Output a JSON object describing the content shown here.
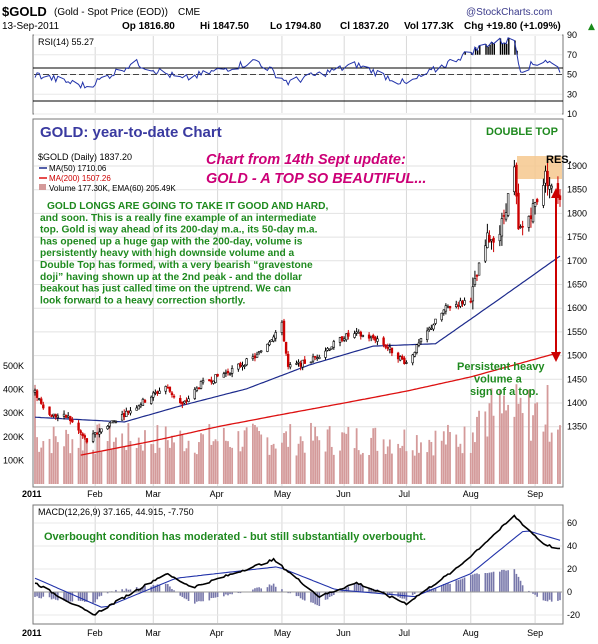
{
  "header": {
    "symbol": "$GOLD",
    "name": "(Gold - Spot Price (EOD))",
    "exchange": "CME",
    "date": "13-Sep-2011",
    "open": "Op 1816.80",
    "high": "Hi 1847.50",
    "low": "Lo 1794.80",
    "close": "Cl 1837.20",
    "volume": "Vol 177.3K",
    "change": "Chg +19.80 (+1.09%)",
    "watermark": "@StockCharts.com",
    "arrow": "▲"
  },
  "rsi": {
    "label": "RSI(14) 55.27",
    "ticks": [
      "90",
      "70",
      "50",
      "30",
      "10"
    ]
  },
  "main": {
    "legend_price": "$GOLD (Daily) 1837.20",
    "legend_ma50": "MA(50) 1710.06",
    "legend_ma200": "MA(200) 1507.26",
    "legend_volume": "Volume 177.30K, EMA(60) 205.49K",
    "price_ticks": [
      "1900",
      "1850",
      "1800",
      "1750",
      "1700",
      "1650",
      "1600",
      "1550",
      "1500",
      "1450",
      "1400",
      "1350"
    ],
    "volume_ticks": [
      "500K",
      "400K",
      "300K",
      "200K",
      "100K"
    ],
    "month_labels": [
      "2011",
      "Feb",
      "Mar",
      "Apr",
      "May",
      "Jun",
      "Jul",
      "Aug",
      "Sep"
    ]
  },
  "macd": {
    "label": "MACD(12,26,9) 37.165, 44.915, -7.750",
    "ticks": [
      "60",
      "40",
      "20",
      "0",
      "-20"
    ],
    "month_labels": [
      "2011",
      "Feb",
      "Mar",
      "Apr",
      "May",
      "Jun",
      "Jul",
      "Aug",
      "Sep"
    ]
  },
  "annotations": {
    "ytd_title": "GOLD: year-to-date Chart",
    "double_top": "DOUBLE TOP",
    "res": "RES.",
    "update_line1": "Chart from 14th Sept update:",
    "update_line2": "GOLD - A TOP SO BEAUTIFUL...",
    "commentary": [
      "GOLD LONGS ARE GOING TO TAKE IT GOOD AND HARD,",
      "and soon. This is a really fine example of an intermediate",
      "top. Gold is way ahead of its 200-day m.a., its 50-day m.a.",
      "has opened up a huge gap with the 200-day, volume is",
      "persistently heavy with high downside volume and a",
      "Double Top has formed, with a very bearish “gravestone",
      "doji” having shown up at the 2nd peak - and the dollar",
      "beakout has just called time on the uptrend. We can",
      "look forward to a heavy correction shortly."
    ],
    "volume_note": [
      "Persistent heavy",
      "volume a",
      "sign of a top."
    ],
    "macd_note": "Overbought condition has moderated - but still substantially overbought."
  },
  "colors": {
    "price_up": "#000000",
    "price_down": "#cc0000",
    "ma50": "#1c2a8c",
    "ma200": "#dd1111",
    "volume": "#d49a9a",
    "rsi_line": "#2233aa",
    "rsi_fill": "#000000",
    "macd_line": "#000000",
    "signal_line": "#2233aa",
    "histogram": "#7777aa",
    "annotation_blue": "#3a3aa0",
    "annotation_green": "#1f8a1f",
    "annotation_magenta": "#cc0077",
    "resistance_band": "#f6c88e",
    "arrow_red": "#cc0000"
  },
  "chart_data": {
    "type": "candlestick",
    "title": "$GOLD (Daily)",
    "period": "2011-01-03 to 2011-09-13",
    "price_axis": {
      "ylim": [
        1300,
        1920
      ],
      "side": "right"
    },
    "price_path_approx": [
      {
        "x": "2011-01-03",
        "y": 1422
      },
      {
        "x": "2011-01-10",
        "y": 1375
      },
      {
        "x": "2011-01-19",
        "y": 1370
      },
      {
        "x": "2011-01-28",
        "y": 1319
      },
      {
        "x": "2011-02-07",
        "y": 1355
      },
      {
        "x": "2011-02-18",
        "y": 1385
      },
      {
        "x": "2011-03-07",
        "y": 1435
      },
      {
        "x": "2011-03-15",
        "y": 1395
      },
      {
        "x": "2011-03-24",
        "y": 1440
      },
      {
        "x": "2011-04-08",
        "y": 1470
      },
      {
        "x": "2011-04-20",
        "y": 1500
      },
      {
        "x": "2011-05-02",
        "y": 1565
      },
      {
        "x": "2011-05-05",
        "y": 1475
      },
      {
        "x": "2011-05-16",
        "y": 1490
      },
      {
        "x": "2011-06-01",
        "y": 1540
      },
      {
        "x": "2011-06-07",
        "y": 1545
      },
      {
        "x": "2011-06-17",
        "y": 1535
      },
      {
        "x": "2011-06-28",
        "y": 1495
      },
      {
        "x": "2011-07-01",
        "y": 1485
      },
      {
        "x": "2011-07-11",
        "y": 1550
      },
      {
        "x": "2011-07-20",
        "y": 1600
      },
      {
        "x": "2011-08-01",
        "y": 1620
      },
      {
        "x": "2011-08-09",
        "y": 1745
      },
      {
        "x": "2011-08-15",
        "y": 1760
      },
      {
        "x": "2011-08-22",
        "y": 1890
      },
      {
        "x": "2011-08-24",
        "y": 1760
      },
      {
        "x": "2011-08-26",
        "y": 1770
      },
      {
        "x": "2011-09-01",
        "y": 1820
      },
      {
        "x": "2011-09-06",
        "y": 1880
      },
      {
        "x": "2011-09-09",
        "y": 1850
      },
      {
        "x": "2011-09-13",
        "y": 1837
      }
    ],
    "ma50_approx": [
      {
        "x": "2011-01-03",
        "y": 1370
      },
      {
        "x": "2011-02-15",
        "y": 1360
      },
      {
        "x": "2011-03-15",
        "y": 1395
      },
      {
        "x": "2011-04-15",
        "y": 1430
      },
      {
        "x": "2011-05-15",
        "y": 1480
      },
      {
        "x": "2011-06-15",
        "y": 1520
      },
      {
        "x": "2011-07-15",
        "y": 1525
      },
      {
        "x": "2011-08-15",
        "y": 1620
      },
      {
        "x": "2011-09-13",
        "y": 1710
      }
    ],
    "ma200_approx": [
      {
        "x": "2011-01-25",
        "y": 1290
      },
      {
        "x": "2011-03-01",
        "y": 1320
      },
      {
        "x": "2011-04-01",
        "y": 1350
      },
      {
        "x": "2011-05-01",
        "y": 1375
      },
      {
        "x": "2011-06-01",
        "y": 1400
      },
      {
        "x": "2011-07-01",
        "y": 1425
      },
      {
        "x": "2011-08-01",
        "y": 1455
      },
      {
        "x": "2011-09-13",
        "y": 1507
      }
    ],
    "volume_axis": {
      "ylim": [
        0,
        550000
      ]
    },
    "rsi_axis": {
      "ylim": [
        10,
        90
      ],
      "reference_lines": [
        70,
        30
      ]
    },
    "rsi_approx": [
      {
        "x": "2011-01-03",
        "y": 50
      },
      {
        "x": "2011-01-28",
        "y": 38
      },
      {
        "x": "2011-02-20",
        "y": 62
      },
      {
        "x": "2011-03-15",
        "y": 45
      },
      {
        "x": "2011-04-20",
        "y": 64
      },
      {
        "x": "2011-05-05",
        "y": 42
      },
      {
        "x": "2011-06-07",
        "y": 60
      },
      {
        "x": "2011-07-01",
        "y": 40
      },
      {
        "x": "2011-07-25",
        "y": 66
      },
      {
        "x": "2011-08-10",
        "y": 82
      },
      {
        "x": "2011-08-22",
        "y": 85
      },
      {
        "x": "2011-08-25",
        "y": 55
      },
      {
        "x": "2011-09-06",
        "y": 65
      },
      {
        "x": "2011-09-13",
        "y": 55
      }
    ],
    "macd_axis": {
      "ylim": [
        -25,
        70
      ]
    },
    "macd_approx": [
      {
        "x": "2011-01-03",
        "y": 8
      },
      {
        "x": "2011-01-31",
        "y": -20
      },
      {
        "x": "2011-03-07",
        "y": 16
      },
      {
        "x": "2011-03-20",
        "y": 4
      },
      {
        "x": "2011-04-28",
        "y": 28
      },
      {
        "x": "2011-05-20",
        "y": -4
      },
      {
        "x": "2011-06-07",
        "y": 8
      },
      {
        "x": "2011-07-01",
        "y": -10
      },
      {
        "x": "2011-07-25",
        "y": 20
      },
      {
        "x": "2011-08-22",
        "y": 66
      },
      {
        "x": "2011-09-05",
        "y": 42
      },
      {
        "x": "2011-09-13",
        "y": 37
      }
    ],
    "signal_approx": [
      {
        "x": "2011-01-03",
        "y": 12
      },
      {
        "x": "2011-02-05",
        "y": -14
      },
      {
        "x": "2011-03-12",
        "y": 12
      },
      {
        "x": "2011-04-30",
        "y": 22
      },
      {
        "x": "2011-05-28",
        "y": 2
      },
      {
        "x": "2011-07-05",
        "y": -4
      },
      {
        "x": "2011-08-01",
        "y": 16
      },
      {
        "x": "2011-08-27",
        "y": 54
      },
      {
        "x": "2011-09-13",
        "y": 45
      }
    ],
    "series": [
      {
        "name": "$GOLD (Daily)"
      },
      {
        "name": "MA(50)"
      },
      {
        "name": "MA(200)"
      },
      {
        "name": "Volume"
      },
      {
        "name": "RSI(14)"
      },
      {
        "name": "MACD(12,26,9)"
      }
    ]
  }
}
